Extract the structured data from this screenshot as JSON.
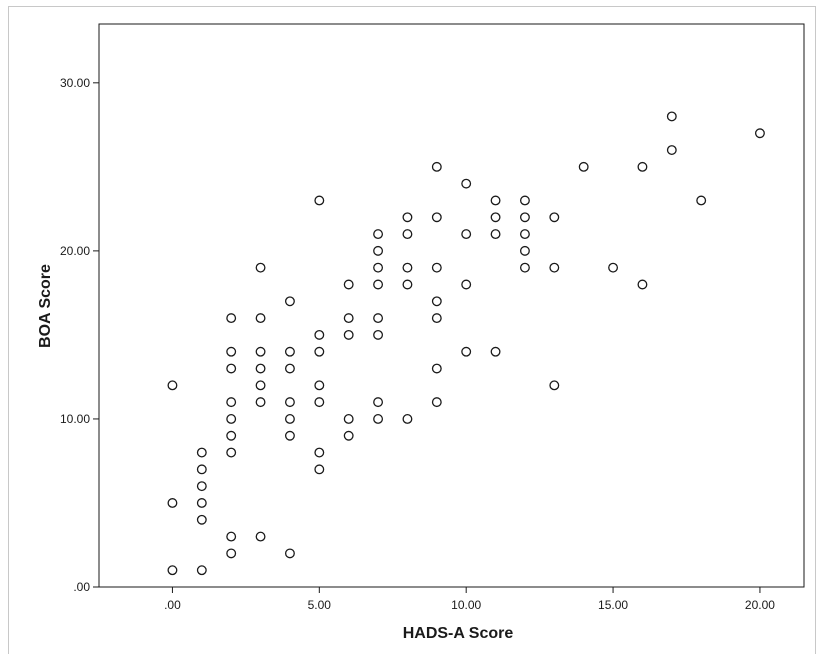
{
  "chart_data": {
    "type": "scatter",
    "title": "",
    "xlabel": "HADS-A Score",
    "ylabel": "BOA Score",
    "xlim": [
      -2.5,
      21.5
    ],
    "ylim": [
      0,
      33.5
    ],
    "xticks": [
      0,
      5,
      10,
      15,
      20
    ],
    "xtick_labels": [
      ".00",
      "5.00",
      "10.00",
      "15.00",
      "20.00"
    ],
    "yticks": [
      0,
      10,
      20,
      30
    ],
    "ytick_labels": [
      ".00",
      "10.00",
      "20.00",
      "30.00"
    ],
    "grid": false,
    "legend": "none",
    "marker": "open-circle",
    "colors": {
      "marker": "#1a1a1a",
      "axis": "#1a1a1a",
      "background": "#ffffff"
    },
    "points": [
      [
        0,
        12
      ],
      [
        0,
        5
      ],
      [
        0,
        1
      ],
      [
        1,
        8
      ],
      [
        1,
        7
      ],
      [
        1,
        6
      ],
      [
        1,
        5
      ],
      [
        1,
        4
      ],
      [
        1,
        1
      ],
      [
        2,
        16
      ],
      [
        2,
        14
      ],
      [
        2,
        13
      ],
      [
        2,
        11
      ],
      [
        2,
        10
      ],
      [
        2,
        9
      ],
      [
        2,
        8
      ],
      [
        2,
        3
      ],
      [
        2,
        2
      ],
      [
        3,
        19
      ],
      [
        3,
        16
      ],
      [
        3,
        14
      ],
      [
        3,
        13
      ],
      [
        3,
        12
      ],
      [
        3,
        11
      ],
      [
        3,
        3
      ],
      [
        4,
        17
      ],
      [
        4,
        14
      ],
      [
        4,
        13
      ],
      [
        4,
        11
      ],
      [
        4,
        10
      ],
      [
        4,
        9
      ],
      [
        4,
        2
      ],
      [
        5,
        23
      ],
      [
        5,
        15
      ],
      [
        5,
        14
      ],
      [
        5,
        12
      ],
      [
        5,
        11
      ],
      [
        5,
        8
      ],
      [
        5,
        7
      ],
      [
        6,
        18
      ],
      [
        6,
        16
      ],
      [
        6,
        15
      ],
      [
        6,
        10
      ],
      [
        6,
        9
      ],
      [
        7,
        21
      ],
      [
        7,
        20
      ],
      [
        7,
        19
      ],
      [
        7,
        18
      ],
      [
        7,
        16
      ],
      [
        7,
        15
      ],
      [
        7,
        11
      ],
      [
        7,
        10
      ],
      [
        8,
        22
      ],
      [
        8,
        21
      ],
      [
        8,
        19
      ],
      [
        8,
        18
      ],
      [
        8,
        10
      ],
      [
        9,
        25
      ],
      [
        9,
        22
      ],
      [
        9,
        19
      ],
      [
        9,
        17
      ],
      [
        9,
        16
      ],
      [
        9,
        13
      ],
      [
        9,
        11
      ],
      [
        10,
        24
      ],
      [
        10,
        21
      ],
      [
        10,
        18
      ],
      [
        10,
        14
      ],
      [
        11,
        23
      ],
      [
        11,
        22
      ],
      [
        11,
        21
      ],
      [
        11,
        14
      ],
      [
        12,
        23
      ],
      [
        12,
        22
      ],
      [
        12,
        21
      ],
      [
        12,
        20
      ],
      [
        12,
        19
      ],
      [
        13,
        22
      ],
      [
        13,
        19
      ],
      [
        13,
        12
      ],
      [
        14,
        25
      ],
      [
        15,
        19
      ],
      [
        16,
        25
      ],
      [
        16,
        18
      ],
      [
        17,
        28
      ],
      [
        17,
        26
      ],
      [
        18,
        23
      ],
      [
        20,
        27
      ]
    ]
  }
}
